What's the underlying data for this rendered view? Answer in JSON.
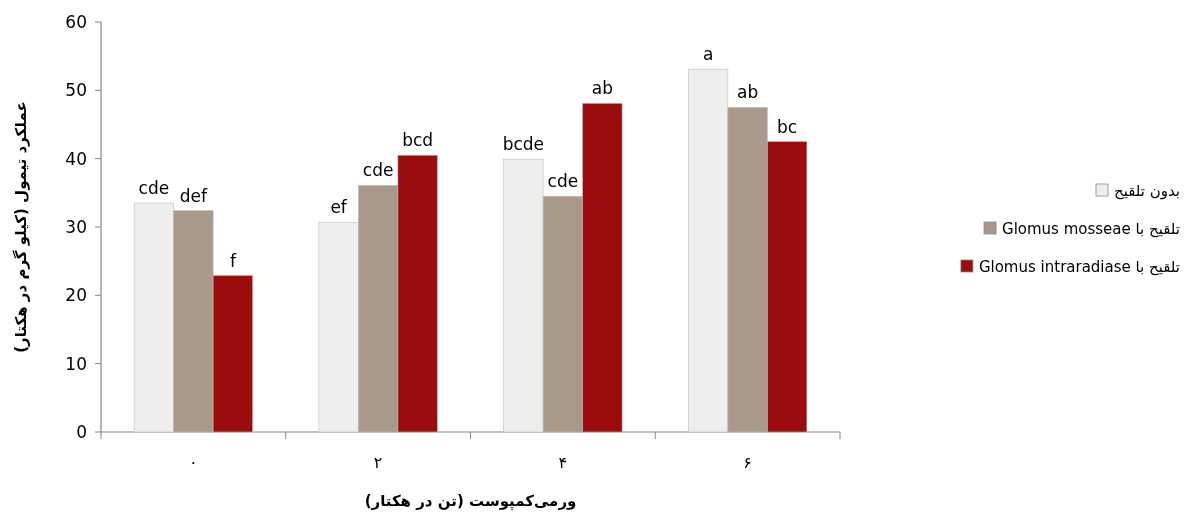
{
  "chart_data": {
    "type": "bar",
    "xlabel": "ورمی‌کمپوست (تن در هکتار)",
    "ylabel": "عملکرد تیمول (کیلو گرم در هکتار)",
    "categories": [
      "۰",
      "۲",
      "۴",
      "۶"
    ],
    "ylim": [
      0,
      60
    ],
    "yticks": [
      0,
      10,
      20,
      30,
      40,
      50,
      60
    ],
    "grid": false,
    "legend": "right",
    "series": [
      {
        "name": "بدون تلقیح",
        "color": "#eeeeec",
        "values": [
          33.5,
          30.7,
          39.9,
          53.1
        ],
        "value_labels": [
          "cde",
          "ef",
          "bcde",
          "a"
        ]
      },
      {
        "name": "تلقیح با Glomus mosseae",
        "color": "#a8998a",
        "values": [
          32.4,
          36.1,
          34.5,
          47.5
        ],
        "value_labels": [
          "def",
          "cde",
          "cde",
          "ab"
        ]
      },
      {
        "name": "تلقیح با Glomus intraradiase",
        "color": "#9b0c0c",
        "values": [
          22.9,
          40.5,
          48.1,
          42.5
        ],
        "value_labels": [
          "f",
          "bcd",
          "ab",
          "bc"
        ]
      }
    ]
  }
}
